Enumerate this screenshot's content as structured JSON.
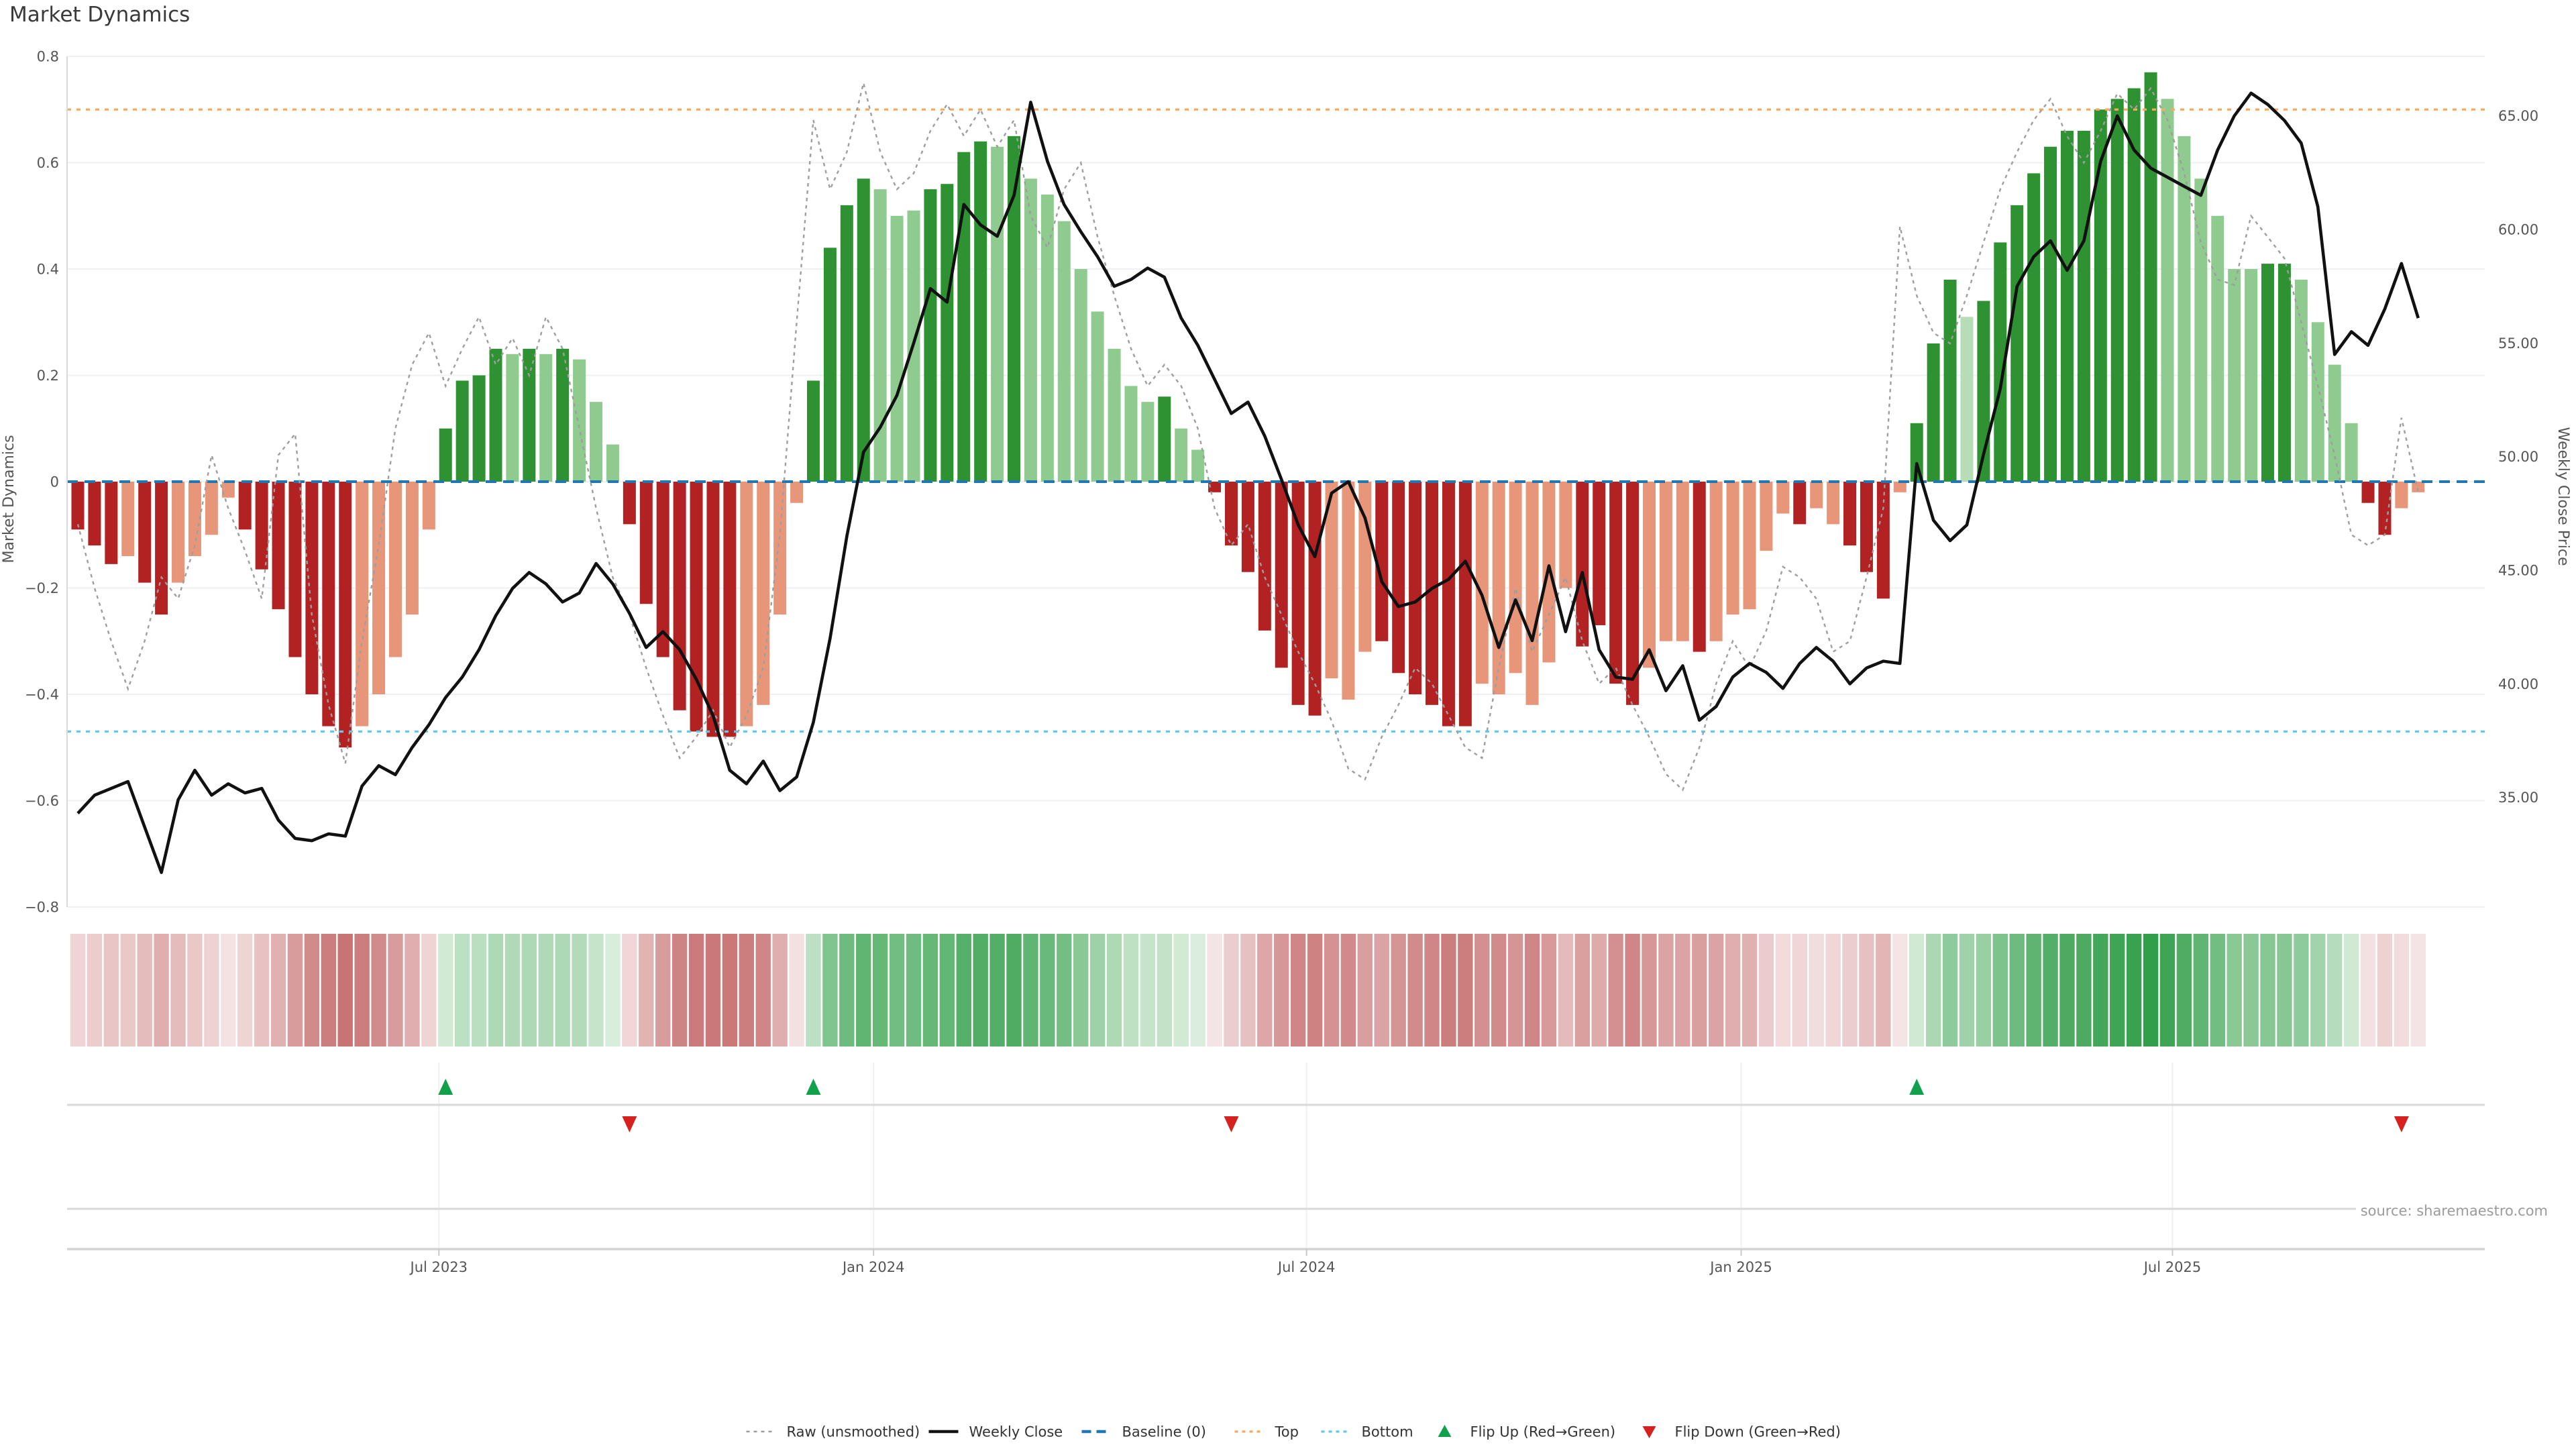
{
  "title": "Market Dynamics",
  "source": "source: sharemaestro.com",
  "colors": {
    "bar_positive_strong": "#2e9232",
    "bar_positive_light": "#8fca8f",
    "bar_positive_pale": "#b7ddb7",
    "bar_negative_strong": "#b22222",
    "bar_negative_light": "#e8967a",
    "baseline": "#1f77b4",
    "top_line": "#f7a963",
    "bottom_line": "#5fc9ee",
    "raw_line": "#9e9e9e",
    "close_line": "#111111",
    "flip_up": "#12a14b",
    "flip_down": "#d7211e",
    "grid": "#eef0f3",
    "spine": "#d9d9d9",
    "panel_line": "#d8d8d8",
    "axis_text": "#555555",
    "heat_green_max": "#2f9e48",
    "heat_red_max": "#c46868",
    "heat_green_min": "#e9f5e9",
    "heat_red_min": "#f7e9e9"
  },
  "chart_data": {
    "type": "combo",
    "panels": [
      "main dual-axis bar+line",
      "heatmap strip",
      "flip marker strip"
    ],
    "x_tick_labels": [
      "Jul 2023",
      "Jan 2024",
      "Jul 2024",
      "Jan 2025",
      "Jul 2025"
    ],
    "x_tick_week_index": [
      21.6,
      47.6,
      73.5,
      99.5,
      125.3
    ],
    "left_axis": {
      "label": "Market Dynamics",
      "range": [
        -0.8,
        0.8
      ],
      "tick_values": [
        0.8,
        0.6,
        0.4,
        0.2,
        0,
        -0.2,
        -0.4,
        -0.6,
        -0.8
      ],
      "tick_labels": [
        "0.8",
        "0.6",
        "0.4",
        "0.2",
        "0",
        "−0.2",
        "−0.4",
        "−0.6",
        "−0.8"
      ]
    },
    "right_axis": {
      "label": "Weekly Close Price",
      "tick_values": [
        65,
        60,
        55,
        50,
        45,
        40,
        35
      ],
      "tick_labels": [
        "65.00",
        "60.00",
        "55.00",
        "50.00",
        "45.00",
        "40.00",
        "35.00"
      ],
      "price_at_baseline": 48.9,
      "price_per_dyn_unit": 23.4
    },
    "reference_lines": {
      "baseline": 0,
      "top": 0.7,
      "bottom": -0.47
    },
    "series": {
      "market_dynamics": {
        "type": "bar",
        "values": [
          -0.09,
          -0.12,
          -0.155,
          -0.14,
          -0.19,
          -0.25,
          -0.19,
          -0.14,
          -0.1,
          -0.03,
          -0.09,
          -0.165,
          -0.24,
          -0.33,
          -0.4,
          -0.46,
          -0.5,
          -0.46,
          -0.4,
          -0.33,
          -0.25,
          -0.09,
          0.1,
          0.19,
          0.2,
          0.25,
          0.24,
          0.25,
          0.24,
          0.25,
          0.23,
          0.15,
          0.07,
          -0.08,
          -0.23,
          -0.33,
          -0.43,
          -0.47,
          -0.48,
          -0.48,
          -0.46,
          -0.42,
          -0.25,
          -0.04,
          0.19,
          0.44,
          0.52,
          0.57,
          0.55,
          0.5,
          0.51,
          0.55,
          0.56,
          0.62,
          0.64,
          0.63,
          0.65,
          0.57,
          0.54,
          0.49,
          0.4,
          0.32,
          0.25,
          0.18,
          0.15,
          0.16,
          0.1,
          0.06,
          -0.02,
          -0.12,
          -0.17,
          -0.28,
          -0.35,
          -0.42,
          -0.44,
          -0.37,
          -0.41,
          -0.32,
          -0.3,
          -0.36,
          -0.4,
          -0.42,
          -0.46,
          -0.46,
          -0.38,
          -0.4,
          -0.36,
          -0.42,
          -0.34,
          -0.2,
          -0.31,
          -0.27,
          -0.38,
          -0.42,
          -0.35,
          -0.3,
          -0.3,
          -0.32,
          -0.3,
          -0.25,
          -0.24,
          -0.13,
          -0.06,
          -0.08,
          -0.05,
          -0.08,
          -0.12,
          -0.17,
          -0.22,
          -0.02,
          0.11,
          0.26,
          0.38,
          0.31,
          0.34,
          0.45,
          0.52,
          0.58,
          0.63,
          0.66,
          0.66,
          0.7,
          0.72,
          0.74,
          0.77,
          0.72,
          0.65,
          0.57,
          0.5,
          0.4,
          0.4,
          0.41,
          0.41,
          0.38,
          0.3,
          0.22,
          0.11,
          -0.04,
          -0.1,
          -0.05,
          -0.02
        ],
        "shade": [
          "d",
          "d",
          "d",
          "l",
          "d",
          "d",
          "l",
          "l",
          "l",
          "l",
          "d",
          "d",
          "d",
          "d",
          "d",
          "d",
          "d",
          "l",
          "l",
          "l",
          "l",
          "l",
          "d",
          "d",
          "d",
          "d",
          "l",
          "d",
          "l",
          "d",
          "l",
          "l",
          "l",
          "d",
          "d",
          "d",
          "d",
          "d",
          "d",
          "d",
          "l",
          "l",
          "l",
          "l",
          "d",
          "d",
          "d",
          "d",
          "l",
          "l",
          "l",
          "d",
          "d",
          "d",
          "d",
          "l",
          "d",
          "l",
          "l",
          "l",
          "l",
          "l",
          "l",
          "l",
          "l",
          "d",
          "l",
          "l",
          "d",
          "d",
          "d",
          "d",
          "d",
          "d",
          "d",
          "l",
          "l",
          "l",
          "d",
          "d",
          "d",
          "d",
          "d",
          "d",
          "l",
          "l",
          "l",
          "l",
          "l",
          "l",
          "d",
          "d",
          "d",
          "d",
          "l",
          "l",
          "l",
          "d",
          "l",
          "l",
          "l",
          "l",
          "l",
          "d",
          "l",
          "l",
          "d",
          "d",
          "d",
          "l",
          "d",
          "d",
          "d",
          "p",
          "d",
          "d",
          "d",
          "d",
          "d",
          "d",
          "d",
          "d",
          "d",
          "d",
          "d",
          "l",
          "l",
          "l",
          "l",
          "l",
          "l",
          "d",
          "d",
          "l",
          "l",
          "l",
          "l",
          "d",
          "d",
          "l",
          "l"
        ]
      },
      "raw_unsmoothed": {
        "type": "line",
        "style": "dotted",
        "values": [
          -0.08,
          -0.2,
          -0.3,
          -0.39,
          -0.3,
          -0.18,
          -0.22,
          -0.12,
          0.05,
          -0.05,
          -0.13,
          -0.22,
          0.05,
          0.09,
          -0.25,
          -0.42,
          -0.53,
          -0.3,
          -0.12,
          0.1,
          0.22,
          0.28,
          0.18,
          0.25,
          0.31,
          0.22,
          0.27,
          0.2,
          0.31,
          0.25,
          0.1,
          -0.05,
          -0.18,
          -0.25,
          -0.35,
          -0.44,
          -0.52,
          -0.48,
          -0.43,
          -0.5,
          -0.44,
          -0.35,
          -0.1,
          0.3,
          0.68,
          0.55,
          0.62,
          0.75,
          0.62,
          0.55,
          0.58,
          0.66,
          0.71,
          0.65,
          0.7,
          0.63,
          0.68,
          0.5,
          0.44,
          0.55,
          0.6,
          0.46,
          0.35,
          0.25,
          0.18,
          0.22,
          0.18,
          0.1,
          -0.05,
          -0.12,
          -0.08,
          -0.18,
          -0.25,
          -0.32,
          -0.38,
          -0.45,
          -0.54,
          -0.56,
          -0.48,
          -0.42,
          -0.35,
          -0.38,
          -0.44,
          -0.5,
          -0.52,
          -0.35,
          -0.2,
          -0.32,
          -0.25,
          -0.18,
          -0.3,
          -0.38,
          -0.35,
          -0.42,
          -0.48,
          -0.55,
          -0.58,
          -0.5,
          -0.38,
          -0.3,
          -0.35,
          -0.28,
          -0.16,
          -0.18,
          -0.22,
          -0.32,
          -0.3,
          -0.18,
          -0.05,
          0.48,
          0.35,
          0.28,
          0.26,
          0.35,
          0.45,
          0.55,
          0.62,
          0.68,
          0.72,
          0.65,
          0.6,
          0.66,
          0.73,
          0.7,
          0.74,
          0.68,
          0.58,
          0.45,
          0.38,
          0.37,
          0.5,
          0.46,
          0.42,
          0.3,
          0.18,
          0.05,
          -0.1,
          -0.12,
          -0.1,
          0.12,
          -0.02
        ]
      },
      "weekly_close": {
        "type": "line",
        "axis": "right",
        "values": [
          34.3,
          35.1,
          35.4,
          35.7,
          33.7,
          31.7,
          34.9,
          36.2,
          35.1,
          35.6,
          35.2,
          35.4,
          34.0,
          33.2,
          33.1,
          33.4,
          33.3,
          35.5,
          36.4,
          36.0,
          37.2,
          38.2,
          39.4,
          40.3,
          41.5,
          43.0,
          44.2,
          44.9,
          44.4,
          43.6,
          44.0,
          45.3,
          44.4,
          43.1,
          41.6,
          42.3,
          41.5,
          40.2,
          38.6,
          36.2,
          35.6,
          36.6,
          35.3,
          35.9,
          38.3,
          42.0,
          46.5,
          50.2,
          51.3,
          52.7,
          55.0,
          57.4,
          56.8,
          61.1,
          60.2,
          59.7,
          61.5,
          65.6,
          63.0,
          61.1,
          59.9,
          58.8,
          57.5,
          57.8,
          58.3,
          57.9,
          56.1,
          54.9,
          53.4,
          51.9,
          52.4,
          50.9,
          49.0,
          47.0,
          45.6,
          48.4,
          48.9,
          47.3,
          44.5,
          43.4,
          43.6,
          44.2,
          44.6,
          45.4,
          43.9,
          41.6,
          43.7,
          41.9,
          45.2,
          42.3,
          44.9,
          41.5,
          40.3,
          40.2,
          41.5,
          39.7,
          40.8,
          38.4,
          39.0,
          40.3,
          40.9,
          40.5,
          39.8,
          40.9,
          41.6,
          41.0,
          40.0,
          40.7,
          41.0,
          40.9,
          49.7,
          47.2,
          46.3,
          47.0,
          50.1,
          53.0,
          57.5,
          58.8,
          59.5,
          58.2,
          59.5,
          63.0,
          65.0,
          63.5,
          62.7,
          62.3,
          61.9,
          61.5,
          63.5,
          65.0,
          66.0,
          65.5,
          64.8,
          63.8,
          61.0,
          54.5,
          55.5,
          54.9,
          56.5,
          58.5,
          56.1
        ]
      }
    },
    "flip_up_weeks": [
      22,
      44,
      110
    ],
    "flip_down_weeks": [
      33,
      69,
      139
    ]
  },
  "legend": {
    "items": [
      {
        "label": "Raw (unsmoothed)",
        "kind": "raw"
      },
      {
        "label": "Weekly Close",
        "kind": "close"
      },
      {
        "label": "Baseline (0)",
        "kind": "baseline"
      },
      {
        "label": "Top",
        "kind": "top"
      },
      {
        "label": "Bottom",
        "kind": "bottom"
      },
      {
        "label": "Flip Up (Red→Green)",
        "kind": "flip-up"
      },
      {
        "label": "Flip Down (Green→Red)",
        "kind": "flip-down"
      }
    ]
  }
}
